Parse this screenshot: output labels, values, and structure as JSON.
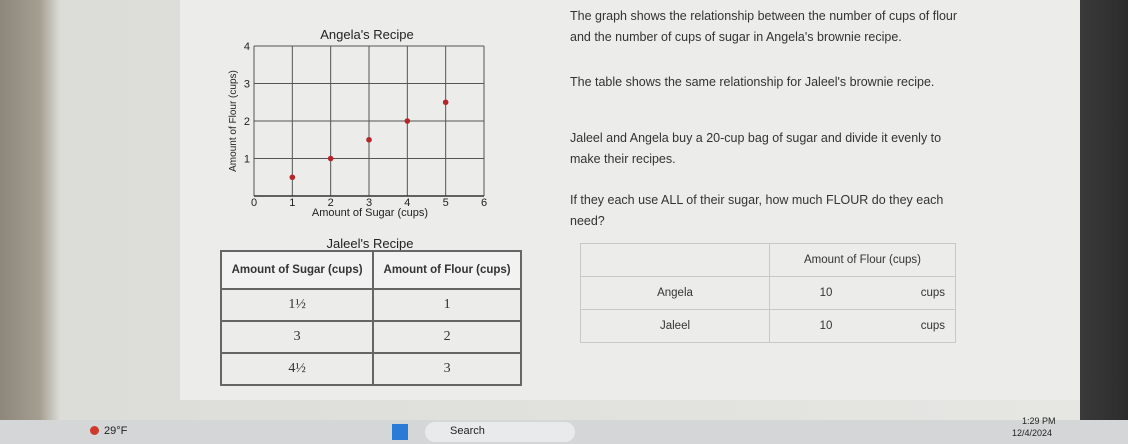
{
  "angela_graph": {
    "title": "Angela's Recipe",
    "x_label": "Amount of Sugar (cups)",
    "y_label": "Amount of Flour (cups)",
    "xlim": [
      0,
      6
    ],
    "ylim": [
      0,
      4
    ],
    "xticks": [
      0,
      1,
      2,
      3,
      4,
      5,
      6
    ],
    "yticks": [
      1,
      2,
      3,
      4
    ],
    "points": {
      "x": [
        1,
        2,
        3,
        4,
        5
      ],
      "y": [
        0.5,
        1,
        1.5,
        2,
        2.5
      ]
    },
    "point_color": "#b3262a"
  },
  "jaleel_table": {
    "title": "Jaleel's Recipe",
    "headers": [
      "Amount of Sugar (cups)",
      "Amount of Flour (cups)"
    ],
    "rows": [
      [
        "1½",
        1
      ],
      [
        3,
        2
      ],
      [
        "4½",
        3
      ]
    ]
  },
  "problem": {
    "paragraphs": [
      "The graph shows the relationship between the number of cups of flour and the number of cups of sugar in Angela's brownie recipe.",
      "The table shows the same relationship for Jaleel's brownie recipe.",
      "Jaleel and Angela buy a 20-cup bag of sugar and divide it evenly to make their recipes.",
      "If they each use ALL of their sugar, how much FLOUR do they each need?"
    ]
  },
  "answer_table": {
    "header": "Amount of Flour (cups)",
    "rows": [
      {
        "name": "Angela",
        "value": 10,
        "unit": "cups"
      },
      {
        "name": "Jaleel",
        "value": 10,
        "unit": "cups"
      }
    ]
  },
  "taskbar": {
    "weather": "29°F",
    "search": "Search",
    "time": "1:29 PM",
    "date": "12/4/2024"
  }
}
